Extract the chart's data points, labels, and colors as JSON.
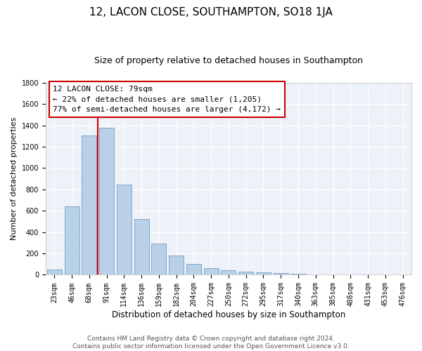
{
  "title": "12, LACON CLOSE, SOUTHAMPTON, SO18 1JA",
  "subtitle": "Size of property relative to detached houses in Southampton",
  "xlabel": "Distribution of detached houses by size in Southampton",
  "ylabel": "Number of detached properties",
  "categories": [
    "23sqm",
    "46sqm",
    "68sqm",
    "91sqm",
    "114sqm",
    "136sqm",
    "159sqm",
    "182sqm",
    "204sqm",
    "227sqm",
    "250sqm",
    "272sqm",
    "295sqm",
    "317sqm",
    "340sqm",
    "363sqm",
    "385sqm",
    "408sqm",
    "431sqm",
    "453sqm",
    "476sqm"
  ],
  "values": [
    50,
    640,
    1305,
    1380,
    845,
    525,
    290,
    183,
    105,
    65,
    42,
    30,
    22,
    13,
    9,
    5,
    3,
    2,
    1,
    0,
    0
  ],
  "bar_color": "#b8d0e8",
  "bar_edge_color": "#6090b8",
  "background_color": "#edf2f9",
  "grid_color": "#ffffff",
  "red_line_x": 2.5,
  "annotation_title": "12 LACON CLOSE: 79sqm",
  "annotation_line1": "← 22% of detached houses are smaller (1,205)",
  "annotation_line2": "77% of semi-detached houses are larger (4,172) →",
  "annotation_box_color": "#cc0000",
  "ylim": [
    0,
    1800
  ],
  "yticks": [
    0,
    200,
    400,
    600,
    800,
    1000,
    1200,
    1400,
    1600,
    1800
  ],
  "footer_line1": "Contains HM Land Registry data © Crown copyright and database right 2024.",
  "footer_line2": "Contains public sector information licensed under the Open Government Licence v3.0.",
  "title_fontsize": 11,
  "subtitle_fontsize": 9,
  "xlabel_fontsize": 8.5,
  "ylabel_fontsize": 8,
  "tick_fontsize": 7,
  "footer_fontsize": 6.5
}
